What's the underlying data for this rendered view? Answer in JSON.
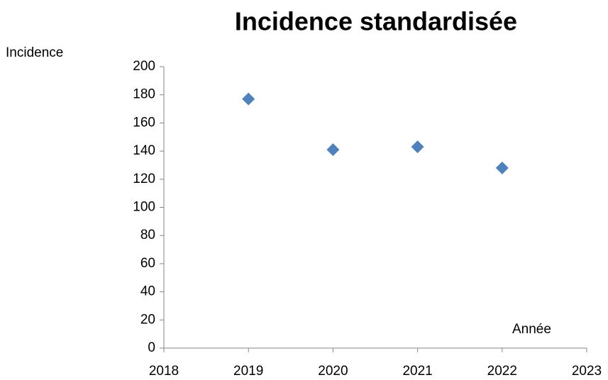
{
  "chart_data": {
    "type": "scatter",
    "title": "Incidence standardisée",
    "y_label": "Incidence",
    "x_label": "Année",
    "series": [
      {
        "name": null,
        "color": "#4f81bd",
        "x": [
          2019,
          2020,
          2021,
          2022
        ],
        "values": [
          177,
          141,
          143,
          128
        ]
      }
    ],
    "xlim": [
      2018,
      2023
    ],
    "xticks": [
      2018,
      2019,
      2020,
      2021,
      2022,
      2023
    ],
    "ylim": [
      0,
      200
    ],
    "yticks": [
      0,
      20,
      40,
      60,
      80,
      100,
      120,
      140,
      160,
      180,
      200
    ],
    "grid": false,
    "marker": "diamond"
  }
}
